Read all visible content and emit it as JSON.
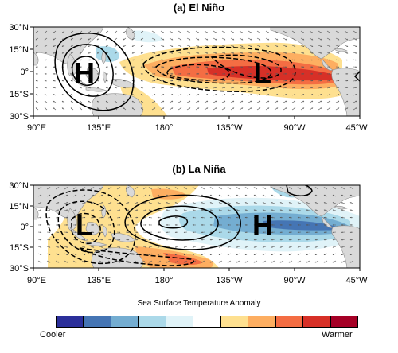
{
  "panels": [
    {
      "title": "(a) El Niño",
      "pressure_labels": [
        {
          "text": "H",
          "lon": 113
        },
        {
          "text": "L",
          "lon": 240
        }
      ],
      "sst_anomaly": "warm"
    },
    {
      "title": "(b) La Niña",
      "pressure_labels": [
        {
          "text": "L",
          "lon": 113
        },
        {
          "text": "H",
          "lon": 240
        }
      ],
      "sst_anomaly": "cool"
    }
  ],
  "lat_ticks": [
    "30°N",
    "15°N",
    "0°",
    "15°S",
    "30°S"
  ],
  "lon_ticks": [
    "90°E",
    "135°E",
    "180°",
    "135°W",
    "90°W",
    "45°W"
  ],
  "legend": {
    "title": "Sea Surface Temperature Anomaly",
    "low_label": "Cooler",
    "high_label": "Warmer",
    "colors": [
      "#2b2f9a",
      "#4575b4",
      "#74add1",
      "#abd9e9",
      "#e0f3f8",
      "#ffffff",
      "#fee090",
      "#fdae61",
      "#f46d43",
      "#d73027",
      "#a50026"
    ]
  },
  "colors": {
    "land": "#d9d9d9",
    "ocean": "#ffffff",
    "warm_light": "#fee090",
    "warm_mid": "#fdae61",
    "warm_strong": "#f46d43",
    "warm_max": "#d73027",
    "cool_light": "#e0f3f8",
    "cool_mid": "#abd9e9",
    "cool_strong": "#74add1",
    "cool_max": "#4575b4"
  }
}
